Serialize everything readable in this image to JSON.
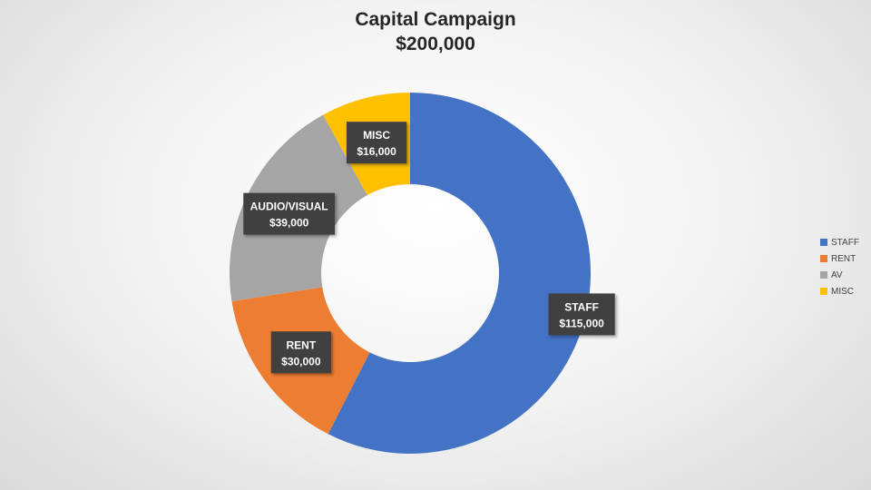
{
  "chart_data": {
    "type": "pie",
    "variant": "donut",
    "title": "Capital Campaign",
    "subtitle": "$200,000",
    "slices": [
      {
        "label": "STAFF",
        "value": 115000,
        "data_label_name": "STAFF",
        "data_label_value": "$115,000",
        "color": "#4472C4"
      },
      {
        "label": "RENT",
        "value": 30000,
        "data_label_name": "RENT",
        "data_label_value": "$30,000",
        "color": "#ED7D31"
      },
      {
        "label": "AV",
        "value": 39000,
        "data_label_name": "AUDIO/VISUAL",
        "data_label_value": "$39,000",
        "color": "#A5A5A5"
      },
      {
        "label": "MISC",
        "value": 16000,
        "data_label_name": "MISC",
        "data_label_value": "$16,000",
        "color": "#FFC000"
      }
    ],
    "legend_position": "right",
    "data_label_style": "dark box with white text"
  }
}
